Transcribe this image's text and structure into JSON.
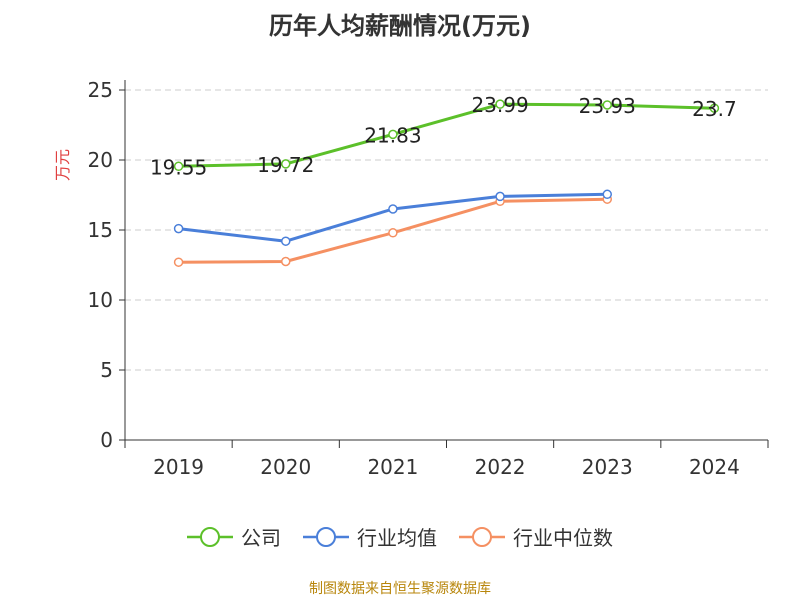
{
  "title": "历年人均薪酬情况(万元)",
  "source_text": "制图数据来自恒生聚源数据库",
  "chart_data": {
    "type": "line",
    "title": "历年人均薪酬情况(万元)",
    "xlabel": "",
    "ylabel": "万元",
    "categories": [
      "2019",
      "2020",
      "2021",
      "2022",
      "2023",
      "2024"
    ],
    "ylim": [
      0,
      25
    ],
    "yticks": [
      0,
      5,
      10,
      15,
      20,
      25
    ],
    "grid": true,
    "legend_position": "bottom",
    "series": [
      {
        "name": "公司",
        "color": "#5cc02a",
        "values": [
          19.55,
          19.72,
          21.83,
          23.99,
          23.93,
          23.7
        ],
        "labels": [
          "19.55",
          "19.72",
          "21.83",
          "23.99",
          "23.93",
          "23.7"
        ]
      },
      {
        "name": "行业均值",
        "color": "#4a7fd9",
        "values": [
          15.1,
          14.2,
          16.5,
          17.4,
          17.55,
          null
        ]
      },
      {
        "name": "行业中位数",
        "color": "#f59062",
        "values": [
          12.7,
          12.75,
          14.8,
          17.05,
          17.2,
          null
        ]
      }
    ]
  }
}
